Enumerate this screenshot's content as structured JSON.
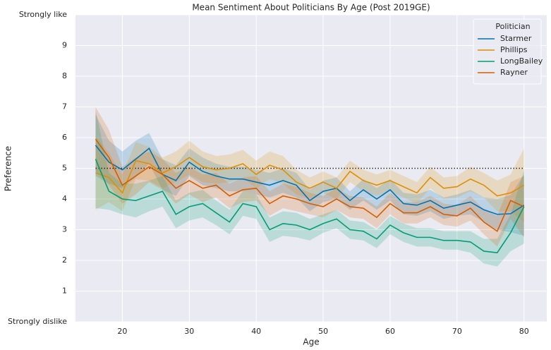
{
  "chart_data": {
    "type": "line",
    "title": "Mean Sentiment About Politicians By Age (Post 2019GE)",
    "x_label": "Age",
    "y_label": "Preference",
    "legend_title": "Politician",
    "legend_position": "upper right",
    "grid": true,
    "hline": 5,
    "xlim": [
      13,
      83.4
    ],
    "ylim": [
      0,
      10
    ],
    "xticks": [
      20,
      30,
      40,
      50,
      60,
      70,
      80
    ],
    "yticks": [
      {
        "value": 0,
        "label": "Strongly dislike"
      },
      1,
      2,
      3,
      4,
      5,
      6,
      7,
      8,
      9,
      {
        "value": 10,
        "label": "Strongly like"
      }
    ],
    "x": [
      16,
      18,
      20,
      22,
      24,
      26,
      28,
      30,
      32,
      34,
      36,
      38,
      40,
      42,
      44,
      46,
      48,
      50,
      52,
      54,
      56,
      58,
      60,
      62,
      64,
      66,
      68,
      70,
      72,
      74,
      76,
      78,
      80
    ],
    "series": [
      {
        "name": "Starmer",
        "color": "#0173b2",
        "values": [
          5.75,
          5.2,
          4.95,
          5.3,
          5.65,
          4.8,
          4.6,
          5.2,
          4.9,
          4.75,
          4.65,
          4.65,
          4.55,
          4.45,
          4.6,
          4.45,
          3.95,
          4.25,
          4.35,
          3.95,
          4.3,
          4.0,
          4.3,
          3.85,
          3.8,
          3.95,
          3.7,
          3.8,
          3.9,
          3.65,
          3.5,
          3.52,
          3.8
        ],
        "ci": [
          1.0,
          0.7,
          0.6,
          0.6,
          0.5,
          0.5,
          0.5,
          0.45,
          0.45,
          0.4,
          0.4,
          0.4,
          0.4,
          0.4,
          0.4,
          0.4,
          0.35,
          0.35,
          0.35,
          0.3,
          0.35,
          0.35,
          0.35,
          0.35,
          0.35,
          0.35,
          0.35,
          0.35,
          0.4,
          0.4,
          0.5,
          0.6,
          1.0
        ]
      },
      {
        "name": "Phillips",
        "color": "#de8f05",
        "values": [
          4.85,
          4.7,
          4.2,
          5.25,
          5.15,
          4.85,
          5.05,
          5.35,
          5.05,
          4.95,
          5.0,
          5.15,
          4.8,
          5.1,
          4.95,
          4.55,
          4.35,
          4.55,
          4.35,
          4.9,
          4.6,
          4.45,
          4.6,
          4.4,
          4.2,
          4.7,
          4.35,
          4.4,
          4.65,
          4.45,
          4.1,
          4.2,
          4.45
        ],
        "ci": [
          1.2,
          0.8,
          0.6,
          0.6,
          0.55,
          0.5,
          0.5,
          0.55,
          0.5,
          0.45,
          0.45,
          0.45,
          0.45,
          0.45,
          0.45,
          0.4,
          0.35,
          0.35,
          0.35,
          0.35,
          0.35,
          0.35,
          0.35,
          0.35,
          0.35,
          0.35,
          0.35,
          0.35,
          0.4,
          0.4,
          0.5,
          0.6,
          1.2
        ]
      },
      {
        "name": "LongBailey",
        "color": "#029e73",
        "values": [
          5.3,
          4.25,
          4.0,
          3.95,
          4.1,
          4.25,
          3.5,
          3.75,
          3.85,
          3.55,
          3.25,
          3.85,
          3.75,
          3.0,
          3.2,
          3.15,
          3.0,
          3.2,
          3.35,
          3.0,
          2.95,
          2.7,
          3.15,
          2.9,
          2.75,
          2.75,
          2.65,
          2.65,
          2.6,
          2.3,
          2.25,
          2.9,
          3.75
        ],
        "ci": [
          1.6,
          0.6,
          0.5,
          0.55,
          0.5,
          0.5,
          0.45,
          0.45,
          0.45,
          0.4,
          0.4,
          0.4,
          0.4,
          0.4,
          0.4,
          0.4,
          0.35,
          0.3,
          0.3,
          0.3,
          0.3,
          0.3,
          0.3,
          0.3,
          0.3,
          0.3,
          0.3,
          0.3,
          0.35,
          0.4,
          0.45,
          0.6,
          1.2
        ]
      },
      {
        "name": "Rayner",
        "color": "#d55e00",
        "values": [
          5.95,
          5.35,
          4.45,
          4.75,
          5.05,
          4.8,
          4.35,
          4.6,
          4.35,
          4.45,
          4.1,
          4.3,
          4.35,
          3.85,
          4.1,
          4.0,
          3.85,
          3.75,
          4.0,
          3.75,
          3.7,
          3.4,
          3.85,
          3.55,
          3.55,
          3.75,
          3.5,
          3.45,
          3.7,
          3.25,
          2.95,
          3.95,
          3.75
        ],
        "ci": [
          1.05,
          0.9,
          0.6,
          0.6,
          0.5,
          0.5,
          0.5,
          0.45,
          0.45,
          0.4,
          0.4,
          0.4,
          0.4,
          0.4,
          0.4,
          0.4,
          0.35,
          0.35,
          0.35,
          0.35,
          0.35,
          0.35,
          0.35,
          0.35,
          0.35,
          0.35,
          0.35,
          0.35,
          0.4,
          0.4,
          0.5,
          0.6,
          1.0
        ]
      }
    ]
  }
}
